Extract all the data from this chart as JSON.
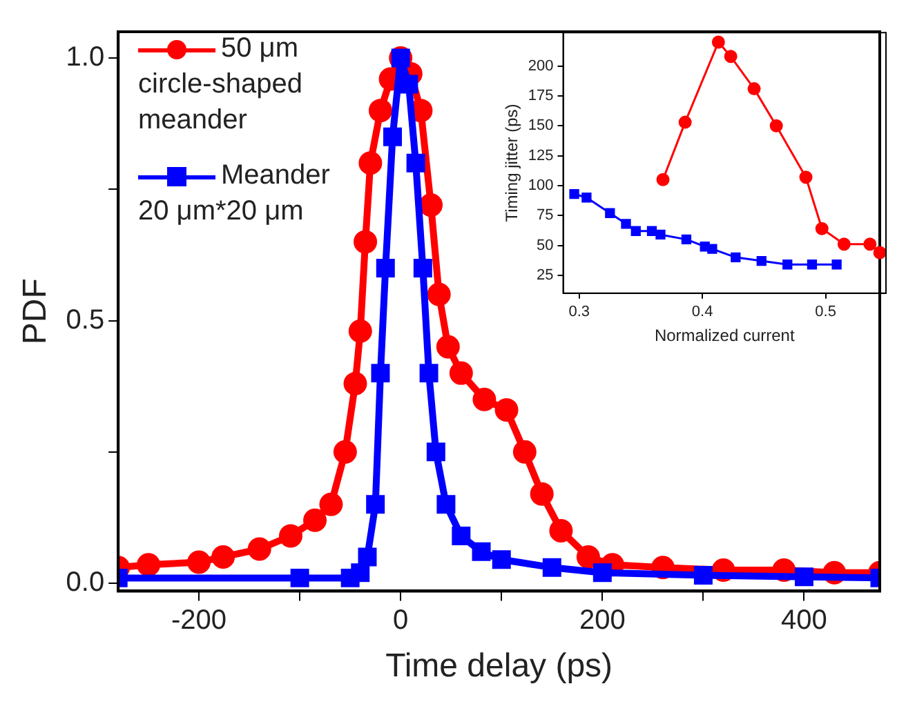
{
  "chart_data": [
    {
      "type": "line",
      "xlabel": "Time delay (ps)",
      "ylabel": "PDF",
      "xlim": [
        -280,
        475
      ],
      "ylim": [
        -0.015,
        1.05
      ],
      "xticks": [
        -200,
        {
          "value": -100,
          "label": null
        },
        0,
        {
          "value": 100,
          "label": null
        },
        200,
        {
          "value": 300,
          "label": null
        },
        400
      ],
      "yticks": [
        {
          "value": 0,
          "label": "0.0"
        },
        {
          "value": 0.25,
          "label": null
        },
        {
          "value": 0.5,
          "label": "0.5"
        },
        {
          "value": 0.75,
          "label": null
        },
        {
          "value": 1,
          "label": "1.0"
        }
      ],
      "grid": false,
      "legend": "top left",
      "series": [
        {
          "name": "50 μm circle-shaped meander",
          "color": "#ff0000",
          "marker": "circle",
          "x": [
            -280,
            -250,
            -200,
            -176,
            -140,
            -109,
            -85,
            -69,
            -55,
            -45,
            -40,
            -35,
            -30,
            -20,
            -10,
            0,
            10,
            20,
            30,
            38,
            47,
            60,
            83,
            105,
            123,
            140,
            159,
            186,
            210,
            260,
            320,
            380,
            430,
            475
          ],
          "values": [
            0.03,
            0.035,
            0.04,
            0.05,
            0.065,
            0.09,
            0.12,
            0.15,
            0.25,
            0.38,
            0.48,
            0.65,
            0.8,
            0.9,
            0.96,
            1.0,
            0.97,
            0.9,
            0.72,
            0.55,
            0.45,
            0.4,
            0.35,
            0.33,
            0.25,
            0.17,
            0.1,
            0.05,
            0.035,
            0.03,
            0.025,
            0.025,
            0.02,
            0.02
          ]
        },
        {
          "name": "Meander 20 μm*20 μm",
          "color": "#0000ff",
          "marker": "square",
          "x": [
            -280,
            -100,
            -50,
            -40,
            -33,
            -25,
            -20,
            -15,
            -8,
            0,
            8,
            15,
            22,
            28,
            35,
            45,
            60,
            80,
            100,
            150,
            200,
            300,
            400,
            475
          ],
          "values": [
            0.01,
            0.01,
            0.01,
            0.02,
            0.05,
            0.15,
            0.4,
            0.6,
            0.85,
            1.0,
            0.95,
            0.8,
            0.6,
            0.4,
            0.25,
            0.15,
            0.09,
            0.06,
            0.045,
            0.03,
            0.02,
            0.015,
            0.012,
            0.01
          ]
        }
      ]
    },
    {
      "type": "line",
      "xlabel": "Normalized current",
      "ylabel": "Timing jitter (ps)",
      "xlim": [
        0.287,
        0.549
      ],
      "ylim": [
        10,
        228
      ],
      "xticks": [
        0.3,
        0.4,
        0.5
      ],
      "yticks": [
        25,
        50,
        75,
        100,
        125,
        150,
        175,
        200
      ],
      "grid": false,
      "series": [
        {
          "color": "#ff0000",
          "marker": "circle",
          "x": [
            0.368,
            0.386,
            0.413,
            0.423,
            0.442,
            0.46,
            0.484,
            0.497,
            0.515,
            0.536,
            0.544
          ],
          "values": [
            105,
            153,
            220,
            208,
            181,
            150,
            107,
            64,
            51,
            51,
            44
          ]
        },
        {
          "color": "#0000ff",
          "marker": "square",
          "x": [
            0.296,
            0.306,
            0.325,
            0.338,
            0.346,
            0.359,
            0.366,
            0.387,
            0.402,
            0.408,
            0.427,
            0.448,
            0.469,
            0.489,
            0.509
          ],
          "values": [
            93,
            90,
            77,
            68,
            62,
            62,
            59,
            55,
            49,
            47,
            40,
            37,
            34,
            34,
            34
          ]
        }
      ]
    }
  ]
}
